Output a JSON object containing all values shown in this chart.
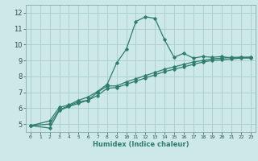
{
  "background_color": "#cce8e8",
  "grid_color": "#aacccc",
  "line_color": "#2e7d6e",
  "xlabel": "Humidex (Indice chaleur)",
  "xlim": [
    -0.5,
    23.5
  ],
  "ylim": [
    4.5,
    12.5
  ],
  "yticks": [
    5,
    6,
    7,
    8,
    9,
    10,
    11,
    12
  ],
  "xticks": [
    0,
    1,
    2,
    3,
    4,
    5,
    6,
    7,
    8,
    9,
    10,
    11,
    12,
    13,
    14,
    15,
    16,
    17,
    18,
    19,
    20,
    21,
    22,
    23
  ],
  "line1_x": [
    0,
    2,
    3,
    4,
    5,
    6,
    7,
    8,
    9,
    10,
    11,
    12,
    13,
    14,
    15,
    16,
    17,
    18,
    19,
    20,
    21,
    22,
    23
  ],
  "line1_y": [
    4.9,
    5.2,
    6.05,
    6.2,
    6.5,
    6.7,
    7.05,
    7.5,
    8.85,
    9.7,
    11.45,
    11.75,
    11.65,
    10.3,
    9.2,
    9.45,
    9.15,
    9.25,
    9.2,
    9.25,
    9.15,
    9.2,
    9.2
  ],
  "line2_x": [
    0,
    2,
    3,
    4,
    5,
    6,
    7,
    8,
    9,
    10,
    11,
    12,
    13,
    14,
    15,
    16,
    17,
    18,
    19,
    20,
    21,
    22,
    23
  ],
  "line2_y": [
    4.9,
    5.0,
    5.9,
    6.15,
    6.4,
    6.5,
    7.0,
    7.4,
    7.4,
    7.65,
    7.85,
    8.05,
    8.25,
    8.45,
    8.6,
    8.75,
    8.9,
    9.0,
    9.1,
    9.15,
    9.2,
    9.2,
    9.2
  ],
  "line3_x": [
    0,
    2,
    3,
    4,
    5,
    6,
    7,
    8,
    9,
    10,
    11,
    12,
    13,
    14,
    15,
    16,
    17,
    18,
    19,
    20,
    21,
    22,
    23
  ],
  "line3_y": [
    4.9,
    4.75,
    5.85,
    6.1,
    6.3,
    6.5,
    6.8,
    7.25,
    7.3,
    7.5,
    7.7,
    7.9,
    8.1,
    8.3,
    8.45,
    8.6,
    8.75,
    8.9,
    9.0,
    9.05,
    9.1,
    9.15,
    9.15
  ]
}
